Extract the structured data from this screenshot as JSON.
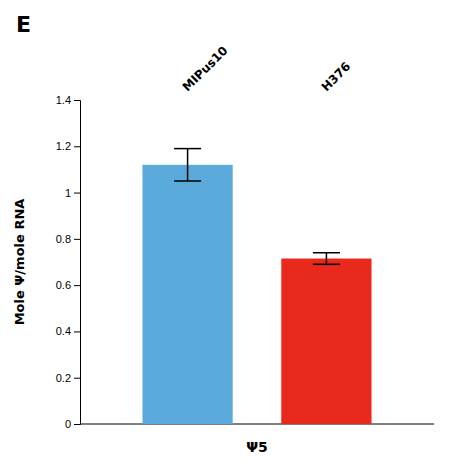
{
  "chart_data": {
    "type": "bar",
    "title": "E",
    "categories": [
      "MIPus10",
      "H376"
    ],
    "values": [
      1.12,
      0.715
    ],
    "errors": [
      0.07,
      0.025
    ],
    "colors": [
      "#5aabdb",
      "#e8291c"
    ],
    "xlabel": "Ψ5",
    "ylabel": "Mole Ψ/mole RNA",
    "ylim": [
      0,
      1.4
    ],
    "yticks": [
      0,
      0.2,
      0.4,
      0.6,
      0.8,
      1,
      1.2,
      1.4
    ],
    "grid": false
  }
}
